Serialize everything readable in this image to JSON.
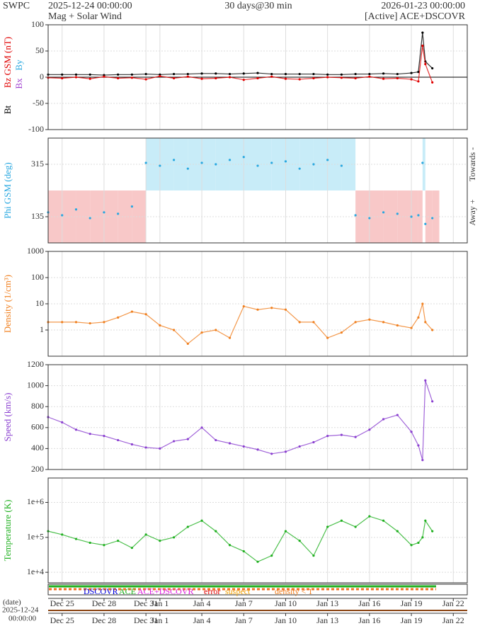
{
  "header": {
    "org": "SWPC",
    "start": "2025-12-24 00:00:00",
    "span": "30 days@30 min",
    "end": "2026-01-23 00:00:00",
    "subtitle": "Mag + Solar Wind",
    "source": "[Active] ACE+DSCOVR"
  },
  "time_axis": {
    "xlim": [
      0,
      30
    ],
    "xticks": [
      {
        "value": 1,
        "label": "Dec 25"
      },
      {
        "value": 4,
        "label": "Dec 28"
      },
      {
        "value": 7,
        "label": "Dec 31"
      },
      {
        "value": 8,
        "label": "Jan 1"
      },
      {
        "value": 11,
        "label": "Jan 4"
      },
      {
        "value": 14,
        "label": "Jan 7"
      },
      {
        "value": 17,
        "label": "Jan 10"
      },
      {
        "value": 20,
        "label": "Jan 13"
      },
      {
        "value": 23,
        "label": "Jan 16"
      },
      {
        "value": 26,
        "label": "Jan 19"
      },
      {
        "value": 29,
        "label": "Jan 22"
      }
    ]
  },
  "source_legend": [
    {
      "label": "DSCOVR",
      "color": "#0000dd"
    },
    {
      "label": "ACE",
      "color": "#20b020"
    },
    {
      "label": "ACE+DSCOVR",
      "color": "#e020e0"
    },
    {
      "label": "error",
      "color": "#e00000"
    },
    {
      "label": "suspect",
      "color": "#f0a000"
    },
    {
      "label": "density < 1",
      "color": "#f08020"
    }
  ],
  "footer": {
    "date_label": "(date)",
    "date": "2025-12-24",
    "time": "00:00:00"
  },
  "chart_data": [
    {
      "type": "line",
      "ylabel": "Bz GSM (nT)",
      "ylabel_color": "#e00000",
      "annotations": [
        {
          "text": "Bt",
          "color": "#000000"
        },
        {
          "text": "Bx",
          "color": "#a040d0"
        },
        {
          "text": "By",
          "color": "#29a8e0"
        }
      ],
      "ylim": [
        -100,
        100
      ],
      "yticks": [
        -100,
        -50,
        0,
        50,
        100
      ],
      "grid": true,
      "x": [
        0,
        1,
        2,
        3,
        4,
        5,
        6,
        7,
        8,
        9,
        10,
        11,
        12,
        13,
        14,
        15,
        16,
        17,
        18,
        19,
        20,
        21,
        22,
        23,
        24,
        25,
        26,
        26.5,
        26.8,
        27,
        27.5
      ],
      "series": [
        {
          "name": "Bt",
          "color": "#000000",
          "values": [
            5,
            5,
            5,
            5,
            4,
            5,
            5,
            6,
            5,
            6,
            6,
            7,
            7,
            6,
            7,
            8,
            6,
            6,
            6,
            6,
            5,
            5,
            6,
            6,
            7,
            6,
            8,
            10,
            85,
            30,
            17
          ]
        },
        {
          "name": "Bz",
          "color": "#e00000",
          "values": [
            -1,
            -2,
            0,
            -3,
            1,
            -2,
            -1,
            -4,
            2,
            -2,
            1,
            -3,
            -2,
            0,
            -5,
            -2,
            1,
            -3,
            -4,
            -2,
            0,
            -1,
            -2,
            1,
            -3,
            -2,
            -4,
            -8,
            60,
            25,
            -10
          ]
        }
      ]
    },
    {
      "type": "scatter",
      "ylabel": "Phi GSM (deg)",
      "ylabel_color": "#29a8e0",
      "annotations": [
        {
          "text": "Towards -",
          "color": "#333333"
        },
        {
          "text": "Away +",
          "color": "#333333"
        }
      ],
      "ylim": [
        45,
        405
      ],
      "yticks": [
        135,
        315
      ],
      "grid": true,
      "sector_shading": true,
      "x": [
        0,
        1,
        2,
        3,
        4,
        5,
        6,
        7,
        8,
        9,
        10,
        11,
        12,
        13,
        14,
        15,
        16,
        17,
        18,
        19,
        20,
        21,
        22,
        23,
        24,
        25,
        26,
        26.5,
        26.8,
        27,
        27.5
      ],
      "series": [
        {
          "name": "Phi GSM",
          "color": "#29a8e0",
          "values": [
            150,
            140,
            160,
            130,
            150,
            145,
            170,
            320,
            310,
            330,
            300,
            320,
            315,
            330,
            340,
            310,
            320,
            325,
            300,
            315,
            330,
            310,
            140,
            130,
            150,
            145,
            135,
            140,
            320,
            110,
            130
          ]
        }
      ]
    },
    {
      "type": "line",
      "ylabel": "Density (1/cm³)",
      "ylabel_color": "#f08020",
      "log": true,
      "ylim": [
        0.1,
        1000
      ],
      "yticks": [
        1,
        10,
        100,
        1000
      ],
      "grid": true,
      "x": [
        0,
        1,
        2,
        3,
        4,
        5,
        6,
        7,
        8,
        9,
        10,
        11,
        12,
        13,
        14,
        15,
        16,
        17,
        18,
        19,
        20,
        21,
        22,
        23,
        24,
        25,
        26,
        26.5,
        26.8,
        27,
        27.5
      ],
      "series": [
        {
          "name": "Density",
          "color": "#f08020",
          "values": [
            2,
            2,
            2,
            1.8,
            2,
            3,
            5,
            4,
            1.5,
            1,
            0.3,
            0.8,
            1,
            0.5,
            8,
            6,
            7,
            6,
            2,
            2,
            0.5,
            0.8,
            2,
            2.5,
            2,
            1.5,
            1.2,
            3,
            10,
            2,
            1
          ]
        }
      ]
    },
    {
      "type": "line",
      "ylabel": "Speed (km/s)",
      "ylabel_color": "#8a3fd0",
      "ylim": [
        200,
        1200
      ],
      "yticks": [
        200,
        400,
        600,
        800,
        1000,
        1200
      ],
      "grid": true,
      "x": [
        0,
        1,
        2,
        3,
        4,
        5,
        6,
        7,
        8,
        9,
        10,
        11,
        12,
        13,
        14,
        15,
        16,
        17,
        18,
        19,
        20,
        21,
        22,
        23,
        24,
        25,
        26,
        26.5,
        26.8,
        27,
        27.5
      ],
      "series": [
        {
          "name": "Speed",
          "color": "#8a3fd0",
          "values": [
            700,
            650,
            580,
            540,
            520,
            480,
            440,
            410,
            400,
            470,
            490,
            600,
            480,
            450,
            420,
            390,
            350,
            370,
            420,
            460,
            520,
            530,
            510,
            580,
            680,
            720,
            560,
            430,
            290,
            1050,
            850
          ]
        }
      ]
    },
    {
      "type": "line",
      "ylabel": "Temperature (K)",
      "ylabel_color": "#20b020",
      "log": true,
      "ylim": [
        5000,
        5000000
      ],
      "yticks": [
        {
          "value": 10000,
          "label": "1e+4"
        },
        {
          "value": 100000,
          "label": "1e+5"
        },
        {
          "value": 1000000,
          "label": "1e+6"
        }
      ],
      "grid": true,
      "x": [
        0,
        1,
        2,
        3,
        4,
        5,
        6,
        7,
        8,
        9,
        10,
        11,
        12,
        13,
        14,
        15,
        16,
        17,
        18,
        19,
        20,
        21,
        22,
        23,
        24,
        25,
        26,
        26.5,
        26.8,
        27,
        27.5
      ],
      "series": [
        {
          "name": "Temperature",
          "color": "#20b020",
          "values": [
            150000,
            120000,
            90000,
            70000,
            60000,
            80000,
            50000,
            120000,
            80000,
            100000,
            200000,
            300000,
            150000,
            60000,
            40000,
            20000,
            30000,
            150000,
            80000,
            30000,
            200000,
            300000,
            200000,
            400000,
            300000,
            150000,
            60000,
            70000,
            100000,
            300000,
            150000
          ]
        }
      ]
    }
  ]
}
